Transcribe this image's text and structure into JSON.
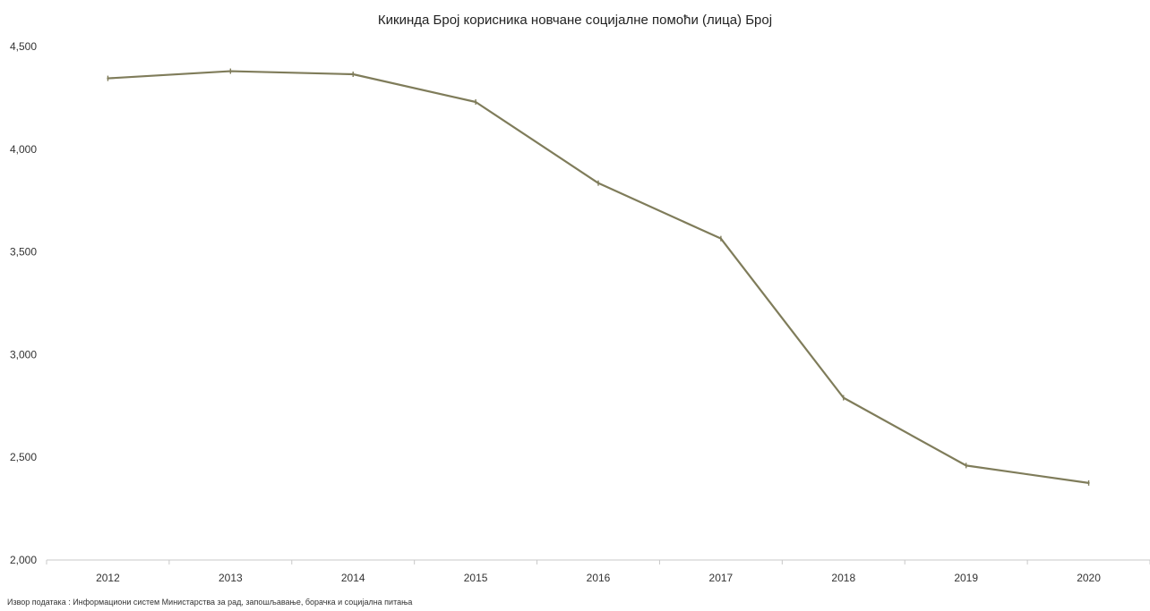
{
  "chart_data": {
    "type": "line",
    "title": "Кикинда Број корисника новчане социјалне помоћи (лица) Број",
    "xlabel": "",
    "ylabel": "",
    "categories": [
      "2012",
      "2013",
      "2014",
      "2015",
      "2016",
      "2017",
      "2018",
      "2019",
      "2020"
    ],
    "series": [
      {
        "values": [
          4345,
          4380,
          4365,
          4230,
          3835,
          3565,
          2790,
          2460,
          2375
        ]
      }
    ],
    "ylim": [
      2000,
      4500
    ],
    "yticks": [
      2000,
      2500,
      3000,
      3500,
      4000,
      4500
    ],
    "ytick_labels": [
      "2,000",
      "2,500",
      "3,000",
      "3,500",
      "4,000",
      "4,500"
    ],
    "grid": false,
    "legend": "none",
    "line_color": "#7f7c5a",
    "source": "Извор података : Информациони систем Министарства за рад, запошљавање, борачка и социјална питања"
  }
}
